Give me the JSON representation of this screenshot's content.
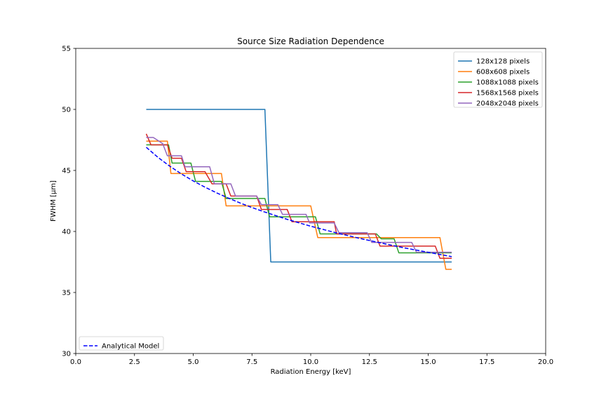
{
  "chart_data": {
    "type": "line",
    "title": "Source Size Radiation Dependence",
    "xlabel": "Radiation Energy [keV]",
    "ylabel": "FWHM [μm]",
    "xlim": [
      0.0,
      20.0
    ],
    "ylim": [
      30,
      55
    ],
    "x_ticks": [
      0.0,
      2.5,
      5.0,
      7.5,
      10.0,
      12.5,
      15.0,
      17.5,
      20.0
    ],
    "x_tick_labels": [
      "0.0",
      "2.5",
      "5.0",
      "7.5",
      "10.0",
      "12.5",
      "15.0",
      "17.5",
      "20.0"
    ],
    "y_ticks": [
      30,
      35,
      40,
      45,
      50,
      55
    ],
    "y_tick_labels": [
      "30",
      "35",
      "40",
      "45",
      "50",
      "55"
    ],
    "grid": false,
    "series": [
      {
        "name": "128x128 pixels",
        "color": "#1f77b4",
        "style": "solid",
        "x": [
          3.0,
          8.05,
          8.3,
          16.0
        ],
        "y": [
          50.0,
          50.0,
          37.5,
          37.5
        ]
      },
      {
        "name": "608x608 pixels",
        "color": "#ff7f0e",
        "style": "solid",
        "x": [
          3.0,
          3.9,
          4.05,
          6.2,
          6.4,
          10.0,
          10.3,
          15.5,
          15.75,
          16.0
        ],
        "y": [
          47.4,
          47.4,
          44.75,
          44.75,
          42.1,
          42.1,
          39.5,
          39.5,
          36.9,
          36.9
        ]
      },
      {
        "name": "1088x1088 pixels",
        "color": "#2ca02c",
        "style": "solid",
        "x": [
          3.0,
          3.95,
          4.1,
          4.9,
          5.1,
          6.2,
          6.4,
          8.05,
          8.25,
          10.2,
          10.4,
          12.8,
          13.0,
          13.55,
          13.75,
          16.0
        ],
        "y": [
          47.1,
          47.1,
          45.6,
          45.6,
          44.1,
          44.1,
          42.7,
          42.7,
          41.2,
          41.2,
          39.8,
          39.8,
          39.4,
          39.4,
          38.25,
          38.25
        ]
      },
      {
        "name": "1568x1568 pixels",
        "color": "#d62728",
        "style": "solid",
        "x": [
          3.0,
          3.2,
          3.9,
          4.1,
          4.5,
          4.7,
          5.5,
          5.8,
          6.4,
          6.6,
          7.7,
          7.9,
          9.0,
          9.2,
          11.0,
          11.1,
          12.75,
          12.95,
          15.3,
          15.5,
          16.0
        ],
        "y": [
          48.0,
          47.1,
          47.1,
          46.0,
          46.0,
          44.9,
          44.9,
          43.9,
          43.9,
          42.9,
          42.9,
          41.8,
          41.8,
          40.8,
          40.8,
          39.8,
          39.8,
          38.8,
          38.8,
          37.8,
          37.8
        ]
      },
      {
        "name": "2048x2048 pixels",
        "color": "#9467bd",
        "style": "solid",
        "x": [
          3.0,
          3.3,
          3.7,
          3.9,
          4.5,
          4.65,
          5.7,
          5.9,
          6.6,
          6.8,
          7.7,
          7.9,
          8.6,
          8.8,
          9.8,
          9.95,
          11.0,
          11.2,
          12.4,
          12.6,
          14.3,
          14.5,
          16.0
        ],
        "y": [
          47.7,
          47.7,
          47.2,
          46.2,
          46.2,
          45.3,
          45.3,
          43.9,
          43.9,
          42.9,
          42.9,
          42.2,
          42.2,
          41.4,
          41.4,
          40.7,
          40.7,
          39.9,
          39.9,
          39.1,
          39.1,
          38.3,
          38.3
        ]
      },
      {
        "name": "Analytical Model",
        "color": "#0000ff",
        "style": "dashed",
        "x": [
          3.0,
          3.5,
          4.0,
          4.5,
          5.0,
          5.5,
          6.0,
          6.5,
          7.0,
          7.5,
          8.0,
          9.0,
          10.0,
          11.0,
          12.0,
          13.0,
          14.0,
          15.0,
          16.0
        ],
        "y": [
          46.9,
          46.07,
          45.35,
          44.71,
          44.14,
          43.63,
          43.16,
          42.73,
          42.33,
          41.96,
          41.62,
          40.99,
          40.43,
          39.93,
          39.47,
          39.05,
          38.65,
          38.29,
          37.94
        ]
      }
    ],
    "legends": [
      {
        "position": "upper-right",
        "entries": [
          "128x128 pixels",
          "608x608 pixels",
          "1088x1088 pixels",
          "1568x1568 pixels",
          "2048x2048 pixels"
        ]
      },
      {
        "position": "lower-left",
        "entries": [
          "Analytical Model"
        ]
      }
    ]
  }
}
